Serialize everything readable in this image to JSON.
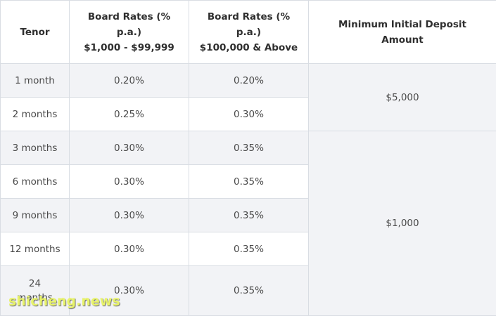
{
  "table": {
    "headers": [
      {
        "lines": [
          "Tenor"
        ]
      },
      {
        "lines": [
          "Board Rates (%",
          "p.a.)",
          "$1,000 - $99,999"
        ]
      },
      {
        "lines": [
          "Board Rates (%",
          "p.a.)",
          "$100,000 & Above"
        ]
      },
      {
        "lines": [
          "Minimum Initial Deposit",
          "Amount"
        ]
      }
    ],
    "rows": [
      {
        "tenor": "1 month",
        "rate_low": "0.20%",
        "rate_high": "0.20%"
      },
      {
        "tenor": "2 months",
        "rate_low": "0.25%",
        "rate_high": "0.30%"
      },
      {
        "tenor": "3 months",
        "rate_low": "0.30%",
        "rate_high": "0.35%"
      },
      {
        "tenor": "6 months",
        "rate_low": "0.30%",
        "rate_high": "0.35%"
      },
      {
        "tenor": "9 months",
        "rate_low": "0.30%",
        "rate_high": "0.35%"
      },
      {
        "tenor": "12 months",
        "rate_low": "0.30%",
        "rate_high": "0.35%"
      },
      {
        "tenor_lines": [
          "24",
          "months"
        ],
        "rate_low": "0.30%",
        "rate_high": "0.35%"
      }
    ],
    "deposits": [
      {
        "amount": "$5,000",
        "rows": "1-2"
      },
      {
        "amount": "$1,000",
        "rows": "3-24"
      }
    ]
  },
  "watermark": {
    "text": "shicheng.news"
  }
}
